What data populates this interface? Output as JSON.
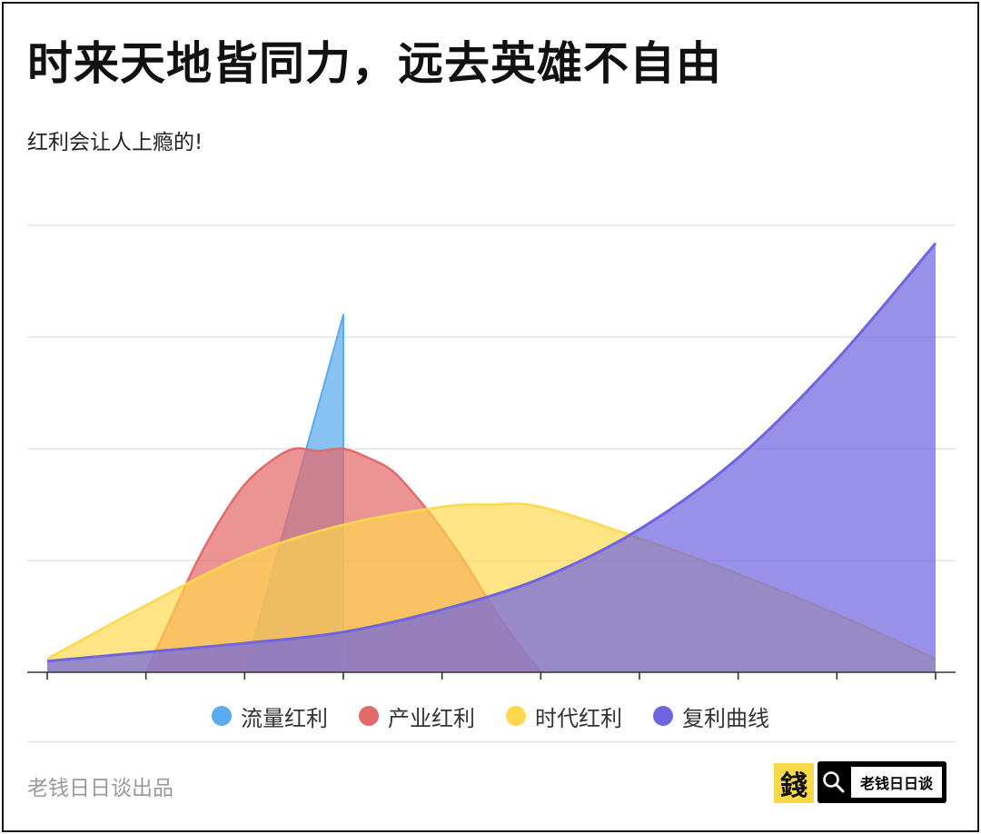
{
  "header": {
    "title": "时来天地皆同力，远去英雄不自由",
    "subtitle": "红利会让人上瘾的!"
  },
  "footer": {
    "credit": "老钱日日谈出品",
    "logo_char": "錢",
    "brand_label": "老钱日日谈",
    "brand_icon": "search-icon"
  },
  "colors": {
    "流量红利": "#5aacf0",
    "产业红利": "#e46a6a",
    "时代红利": "#ffd84d",
    "复利曲线": "#7065e0"
  },
  "chart_data": {
    "type": "area",
    "title": "",
    "xlabel": "",
    "ylabel": "",
    "x": [
      0,
      1,
      2,
      3,
      4,
      5,
      6,
      7,
      8,
      9
    ],
    "xlim": [
      0,
      9
    ],
    "ylim": [
      0,
      100
    ],
    "grid": true,
    "legend_position": "bottom",
    "series": [
      {
        "name": "流量红利",
        "color": "#5aacf0",
        "points": [
          [
            2,
            0
          ],
          [
            3,
            80
          ],
          [
            3,
            0
          ]
        ]
      },
      {
        "name": "产业红利",
        "color": "#e46a6a",
        "points": [
          [
            1,
            0
          ],
          [
            1.25,
            12
          ],
          [
            1.5,
            24
          ],
          [
            1.75,
            34
          ],
          [
            2,
            42
          ],
          [
            2.25,
            47
          ],
          [
            2.5,
            50
          ],
          [
            2.75,
            49.5
          ],
          [
            3,
            50
          ],
          [
            3.25,
            48
          ],
          [
            3.5,
            45
          ],
          [
            3.75,
            39
          ],
          [
            4,
            32
          ],
          [
            4.25,
            24
          ],
          [
            4.5,
            15
          ],
          [
            4.75,
            7
          ],
          [
            5,
            0
          ]
        ]
      },
      {
        "name": "时代红利",
        "color": "#ffd84d",
        "points": [
          [
            0,
            3
          ],
          [
            1,
            15
          ],
          [
            2,
            26
          ],
          [
            3,
            33
          ],
          [
            4,
            37
          ],
          [
            4.5,
            37.5
          ],
          [
            5,
            37
          ],
          [
            6,
            30
          ],
          [
            7,
            22
          ],
          [
            8,
            13
          ],
          [
            9,
            3
          ]
        ]
      },
      {
        "name": "复利曲线",
        "color": "#7065e0",
        "points": [
          [
            0,
            2.5
          ],
          [
            1,
            4.5
          ],
          [
            2,
            6.5
          ],
          [
            3,
            9
          ],
          [
            4,
            14
          ],
          [
            5,
            21
          ],
          [
            6,
            32
          ],
          [
            7,
            48
          ],
          [
            8,
            70
          ],
          [
            9,
            96
          ]
        ]
      }
    ]
  }
}
